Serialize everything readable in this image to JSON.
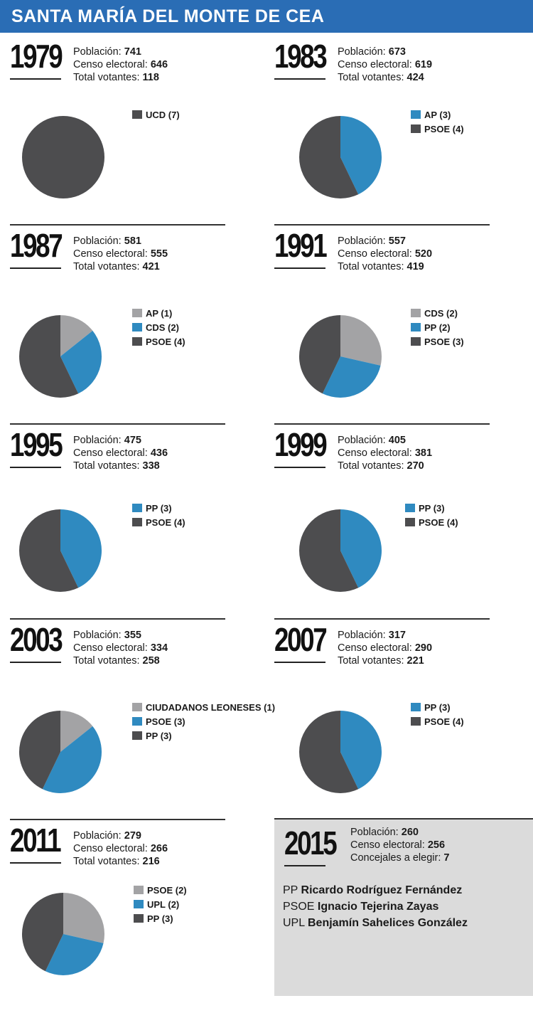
{
  "title": "SANTA MARÍA DEL MONTE DE CEA",
  "labels": {
    "poblacion": "Población:",
    "censo": "Censo electoral:",
    "votantes": "Total votantes:",
    "concejales": "Concejales a elegir:"
  },
  "colors": {
    "dark": "#4d4d4f",
    "blue": "#2f8ac0",
    "gray": "#a3a3a5"
  },
  "chart_data": [
    {
      "type": "pie",
      "title": "1979",
      "poblacion": "741",
      "censo": "646",
      "votantes": "118",
      "slices": [
        {
          "label": "UCD (7)",
          "value": 7,
          "color": "#4d4d4f"
        }
      ]
    },
    {
      "type": "pie",
      "title": "1983",
      "poblacion": "673",
      "censo": "619",
      "votantes": "424",
      "slices": [
        {
          "label": "AP (3)",
          "value": 3,
          "color": "#2f8ac0"
        },
        {
          "label": "PSOE (4)",
          "value": 4,
          "color": "#4d4d4f"
        }
      ]
    },
    {
      "type": "pie",
      "title": "1987",
      "poblacion": "581",
      "censo": "555",
      "votantes": "421",
      "slices": [
        {
          "label": "AP (1)",
          "value": 1,
          "color": "#a3a3a5"
        },
        {
          "label": "CDS (2)",
          "value": 2,
          "color": "#2f8ac0"
        },
        {
          "label": "PSOE (4)",
          "value": 4,
          "color": "#4d4d4f"
        }
      ]
    },
    {
      "type": "pie",
      "title": "1991",
      "poblacion": "557",
      "censo": "520",
      "votantes": "419",
      "slices": [
        {
          "label": "CDS (2)",
          "value": 2,
          "color": "#a3a3a5"
        },
        {
          "label": "PP (2)",
          "value": 2,
          "color": "#2f8ac0"
        },
        {
          "label": "PSOE (3)",
          "value": 3,
          "color": "#4d4d4f"
        }
      ]
    },
    {
      "type": "pie",
      "title": "1995",
      "poblacion": "475",
      "censo": "436",
      "votantes": "338",
      "slices": [
        {
          "label": "PP (3)",
          "value": 3,
          "color": "#2f8ac0"
        },
        {
          "label": "PSOE (4)",
          "value": 4,
          "color": "#4d4d4f"
        }
      ]
    },
    {
      "type": "pie",
      "title": "1999",
      "poblacion": "405",
      "censo": "381",
      "votantes": "270",
      "slices": [
        {
          "label": "PP (3)",
          "value": 3,
          "color": "#2f8ac0"
        },
        {
          "label": "PSOE (4)",
          "value": 4,
          "color": "#4d4d4f"
        }
      ]
    },
    {
      "type": "pie",
      "title": "2003",
      "poblacion": "355",
      "censo": "334",
      "votantes": "258",
      "slices": [
        {
          "label": "CIUDADANOS LEONESES (1)",
          "value": 1,
          "color": "#a3a3a5"
        },
        {
          "label": "PSOE (3)",
          "value": 3,
          "color": "#2f8ac0"
        },
        {
          "label": "PP (3)",
          "value": 3,
          "color": "#4d4d4f"
        }
      ]
    },
    {
      "type": "pie",
      "title": "2007",
      "poblacion": "317",
      "censo": "290",
      "votantes": "221",
      "slices": [
        {
          "label": "PP (3)",
          "value": 3,
          "color": "#2f8ac0"
        },
        {
          "label": "PSOE (4)",
          "value": 4,
          "color": "#4d4d4f"
        }
      ]
    },
    {
      "type": "pie",
      "title": "2011",
      "poblacion": "279",
      "censo": "266",
      "votantes": "216",
      "slices": [
        {
          "label": "PSOE (2)",
          "value": 2,
          "color": "#a3a3a5"
        },
        {
          "label": "UPL  (2)",
          "value": 2,
          "color": "#2f8ac0"
        },
        {
          "label": "PP (3)",
          "value": 3,
          "color": "#4d4d4f"
        }
      ]
    }
  ],
  "election2015": {
    "year": "2015",
    "poblacion": "260",
    "censo": "256",
    "concejales": "7",
    "candidates": [
      {
        "party": "PP",
        "name": "Ricardo Rodríguez Fernández"
      },
      {
        "party": "PSOE",
        "name": "Ignacio Tejerina Zayas"
      },
      {
        "party": "UPL",
        "name": "Benjamín Sahelices González"
      }
    ]
  }
}
